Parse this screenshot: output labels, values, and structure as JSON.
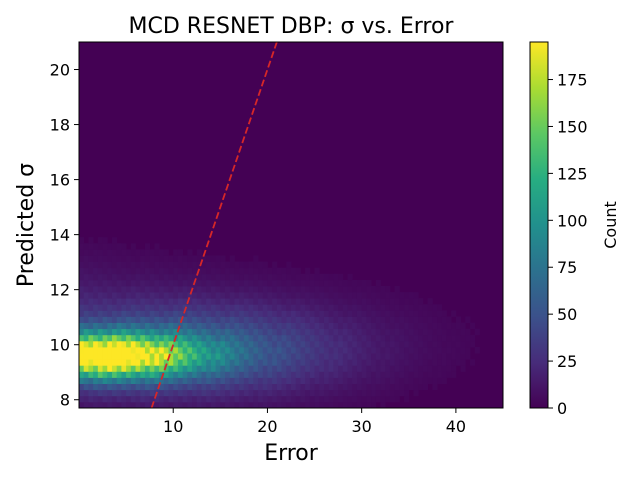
{
  "chart_data": {
    "type": "heatmap",
    "title": "MCD RESNET DBP: σ vs. Error",
    "xlabel": "Error",
    "ylabel": "Predicted σ",
    "xlim": [
      0,
      45
    ],
    "ylim": [
      7.7,
      21.0
    ],
    "xticks": [
      10,
      20,
      30,
      40
    ],
    "yticks": [
      8,
      10,
      12,
      14,
      16,
      18,
      20
    ],
    "grid": false,
    "colormap": "viridis",
    "colorbar": {
      "label": "Count",
      "range": [
        0,
        195
      ],
      "ticks": [
        0,
        25,
        50,
        75,
        100,
        125,
        150,
        175
      ]
    },
    "density": {
      "description_of_peak": "highest counts near Error 0–8, Predicted σ 9–10",
      "peak_count": 190,
      "peak_error": 2,
      "peak_sigma": 9.6
    },
    "reference_line": {
      "style": "dashed",
      "color": "#d62728",
      "points": [
        [
          7.7,
          7.7
        ],
        [
          21.0,
          21.0
        ]
      ]
    }
  }
}
